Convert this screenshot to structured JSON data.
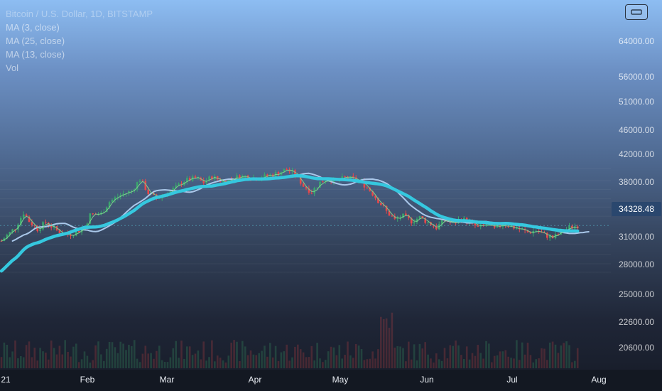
{
  "legend": {
    "title": "Bitcoin / U.S. Dollar, 1D, BITSTAMP",
    "ma1": "MA (3, close)",
    "ma2": "MA (25, close)",
    "ma3": "MA (13, close)",
    "vol": "Vol"
  },
  "axis_button_icon": "settings-icon",
  "current_price": "34328.48",
  "colors": {
    "up": "#3aa76d",
    "down": "#e8484b",
    "ma_thick": "#35c8df",
    "ma_light": "#aac8ea",
    "ma_thin": "#7dcf8f"
  },
  "chart_data": {
    "type": "candlestick",
    "x_tick_labels": [
      "21",
      "Feb",
      "Mar",
      "Apr",
      "May",
      "Jun",
      "Jul",
      "Aug"
    ],
    "y_tick_labels": [
      "64000.00",
      "56000.00",
      "51000.00",
      "46000.00",
      "42000.00",
      "38000.00",
      "31000.00",
      "28000.00",
      "25000.00",
      "22600.00",
      "20600.00"
    ],
    "scale": "log",
    "ylim": [
      18600,
      72500
    ],
    "current_price": 34328.48,
    "ohlc_close_by_month": [
      {
        "month": "Jan",
        "close_range": [
          29000,
          41000
        ]
      },
      {
        "month": "Feb",
        "close_range": [
          33000,
          57000
        ]
      },
      {
        "month": "Mar",
        "close_range": [
          46000,
          61000
        ]
      },
      {
        "month": "Apr",
        "close_range": [
          48000,
          64500
        ]
      },
      {
        "month": "May",
        "close_range": [
          34000,
          58000
        ]
      },
      {
        "month": "Jun",
        "close_range": [
          31000,
          40000
        ]
      },
      {
        "month": "Jul",
        "close_range": [
          29800,
          34500
        ]
      }
    ],
    "series": [
      {
        "name": "MA (3, close)"
      },
      {
        "name": "MA (25, close)"
      },
      {
        "name": "MA (13, close)"
      },
      {
        "name": "Vol"
      }
    ]
  }
}
